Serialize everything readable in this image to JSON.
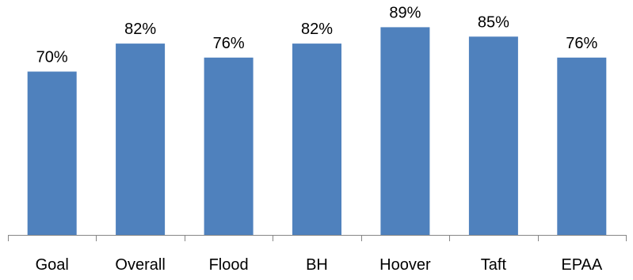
{
  "chart_data": {
    "type": "bar",
    "categories": [
      "Goal",
      "Overall",
      "Flood",
      "BH",
      "Hoover",
      "Taft",
      "EPAA"
    ],
    "values": [
      70,
      82,
      76,
      82,
      89,
      85,
      76
    ],
    "data_labels": [
      "70%",
      "82%",
      "76%",
      "82%",
      "89%",
      "85%",
      "76%"
    ],
    "title": "",
    "xlabel": "",
    "ylabel": "",
    "ylim": [
      0,
      100
    ],
    "grid": false,
    "legend": "none",
    "bar_color": "#4F81BD",
    "axis_color": "#868686"
  }
}
